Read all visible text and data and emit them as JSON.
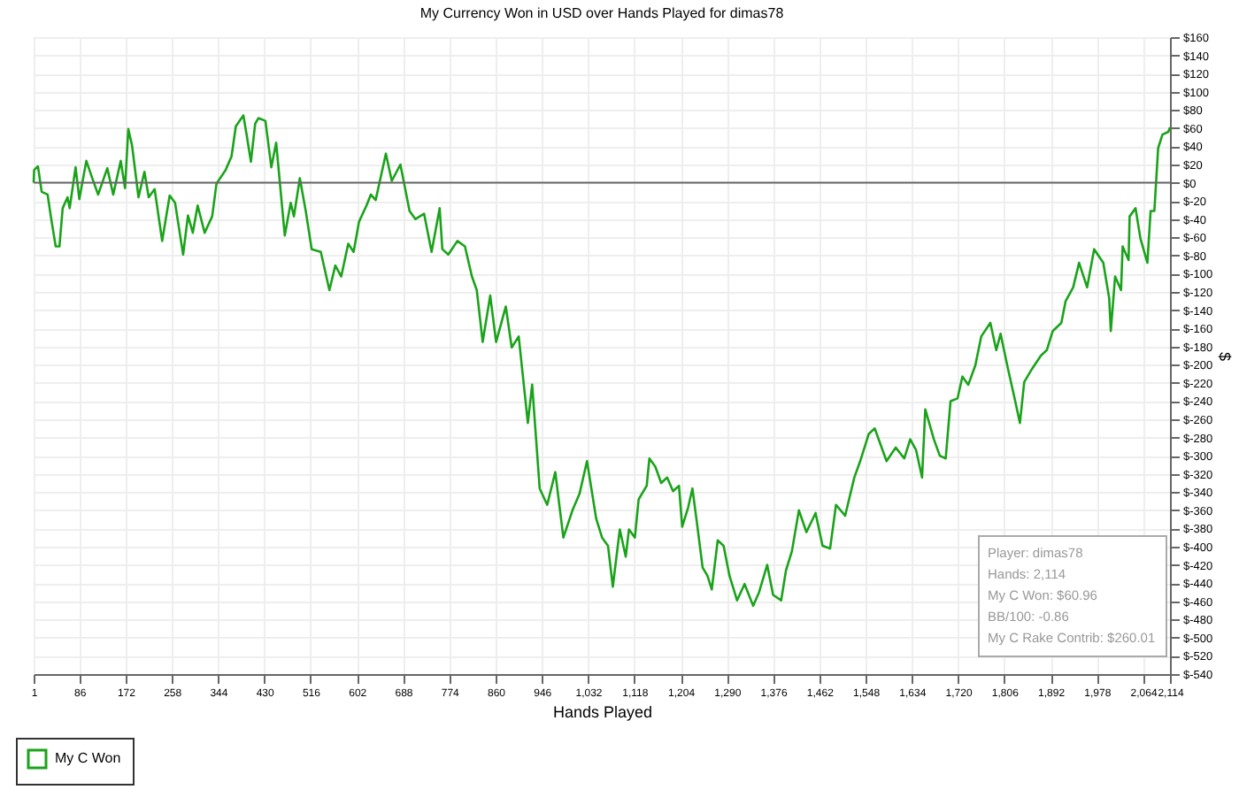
{
  "chart_data": {
    "type": "line",
    "title": "My Currency Won in USD over Hands Played for dimas78",
    "xlabel": "Hands Played",
    "ylabel": "$",
    "xlim": [
      1,
      2114
    ],
    "ylim": [
      -540,
      160
    ],
    "xticks": [
      1,
      86,
      172,
      258,
      344,
      430,
      516,
      602,
      688,
      774,
      860,
      946,
      {
        "value": 1032,
        "label": "1,032"
      },
      {
        "value": 1118,
        "label": "1,118"
      },
      {
        "value": 1204,
        "label": "1,204"
      },
      {
        "value": 1290,
        "label": "1,290"
      },
      {
        "value": 1376,
        "label": "1,376"
      },
      {
        "value": 1462,
        "label": "1,462"
      },
      {
        "value": 1548,
        "label": "1,548"
      },
      {
        "value": 1634,
        "label": "1,634"
      },
      {
        "value": 1720,
        "label": "1,720"
      },
      {
        "value": 1806,
        "label": "1,806"
      },
      {
        "value": 1892,
        "label": "1,892"
      },
      {
        "value": 1978,
        "label": "1,978"
      },
      {
        "value": 2064,
        "label": "2,064"
      },
      {
        "value": 2114,
        "label": "2,114"
      }
    ],
    "yticks": [
      {
        "value": 160,
        "label": "$160"
      },
      {
        "value": 140,
        "label": "$140"
      },
      {
        "value": 120,
        "label": "$120"
      },
      {
        "value": 100,
        "label": "$100"
      },
      {
        "value": 80,
        "label": "$80"
      },
      {
        "value": 60,
        "label": "$60"
      },
      {
        "value": 40,
        "label": "$40"
      },
      {
        "value": 20,
        "label": "$20"
      },
      {
        "value": 0,
        "label": "$0"
      },
      {
        "value": -20,
        "label": "$-20"
      },
      {
        "value": -40,
        "label": "$-40"
      },
      {
        "value": -60,
        "label": "$-60"
      },
      {
        "value": -80,
        "label": "$-80"
      },
      {
        "value": -100,
        "label": "$-100"
      },
      {
        "value": -120,
        "label": "$-120"
      },
      {
        "value": -140,
        "label": "$-140"
      },
      {
        "value": -160,
        "label": "$-160"
      },
      {
        "value": -180,
        "label": "$-180"
      },
      {
        "value": -200,
        "label": "$-200"
      },
      {
        "value": -220,
        "label": "$-220"
      },
      {
        "value": -240,
        "label": "$-240"
      },
      {
        "value": -260,
        "label": "$-260"
      },
      {
        "value": -280,
        "label": "$-280"
      },
      {
        "value": -300,
        "label": "$-300"
      },
      {
        "value": -320,
        "label": "$-320"
      },
      {
        "value": -340,
        "label": "$-340"
      },
      {
        "value": -360,
        "label": "$-360"
      },
      {
        "value": -380,
        "label": "$-380"
      },
      {
        "value": -400,
        "label": "$-400"
      },
      {
        "value": -420,
        "label": "$-420"
      },
      {
        "value": -440,
        "label": "$-440"
      },
      {
        "value": -460,
        "label": "$-460"
      },
      {
        "value": -480,
        "label": "$-480"
      },
      {
        "value": -500,
        "label": "$-500"
      },
      {
        "value": -520,
        "label": "$-520"
      },
      {
        "value": -540,
        "label": "$-540"
      }
    ],
    "grid": true,
    "legend": "bottom left",
    "marker": "none",
    "line_style": "solid",
    "ref_lines": [
      {
        "axis": "y",
        "value": 0,
        "color": "#666666"
      }
    ],
    "annotations": [
      "Player: dimas78",
      "Hands: 2,114",
      "My C Won: $60.96",
      "BB/100: -0.86",
      "My C Rake Contrib: $260.01"
    ],
    "series": [
      {
        "name": "My C Won",
        "color": "#1aa31a",
        "x": [
          1,
          2,
          9,
          16,
          27,
          33,
          42,
          49,
          55,
          64,
          68,
          79,
          86,
          99,
          110,
          121,
          138,
          149,
          163,
          171,
          177,
          184,
          196,
          207,
          215,
          226,
          240,
          254,
          264,
          279,
          288,
          297,
          306,
          319,
          333,
          341,
          358,
          369,
          377,
          391,
          397,
          405,
          413,
          419,
          432,
          443,
          452,
          468,
          479,
          485,
          496,
          507,
          518,
          535,
          551,
          562,
          573,
          586,
          596,
          606,
          620,
          628,
          637,
          656,
          667,
          683,
          692,
          700,
          711,
          727,
          741,
          756,
          761,
          772,
          789,
          803,
          816,
          825,
          836,
          850,
          861,
          879,
          890,
          903,
          920,
          928,
          942,
          956,
          971,
          986,
          1003,
          1016,
          1030,
          1047,
          1058,
          1069,
          1078,
          1091,
          1102,
          1108,
          1119,
          1126,
          1141,
          1146,
          1157,
          1168,
          1179,
          1190,
          1201,
          1207,
          1218,
          1226,
          1234,
          1245,
          1254,
          1262,
          1273,
          1284,
          1295,
          1309,
          1323,
          1339,
          1350,
          1365,
          1376,
          1391,
          1400,
          1411,
          1424,
          1438,
          1455,
          1468,
          1482,
          1493,
          1510,
          1527,
          1538,
          1554,
          1565,
          1587,
          1604,
          1620,
          1631,
          1642,
          1653,
          1659,
          1675,
          1686,
          1697,
          1706,
          1719,
          1728,
          1739,
          1752,
          1763,
          1780,
          1791,
          1799,
          1813,
          1824,
          1835,
          1843,
          1857,
          1874,
          1885,
          1896,
          1912,
          1920,
          1934,
          1945,
          1960,
          1973,
          1990,
          2001,
          2004,
          2012,
          2023,
          2026,
          2037,
          2039,
          2050,
          2059,
          2072,
          2078,
          2085,
          2092,
          2100,
          2111,
          2114
        ],
        "values": [
          0,
          14,
          18,
          -10,
          -13,
          -37,
          -70,
          -70,
          -28,
          -16,
          -28,
          17,
          -18,
          24,
          5,
          -13,
          16,
          -13,
          24,
          -6,
          59,
          41,
          -16,
          12,
          -16,
          -7,
          -64,
          -14,
          -22,
          -79,
          -36,
          -55,
          -25,
          -55,
          -37,
          -1,
          14,
          29,
          62,
          74,
          53,
          23,
          65,
          71,
          68,
          17,
          44,
          -58,
          -22,
          -37,
          5,
          -31,
          -73,
          -76,
          -118,
          -91,
          -103,
          -67,
          -76,
          -43,
          -25,
          -13,
          -19,
          32,
          2,
          20,
          -7,
          -31,
          -40,
          -34,
          -76,
          -28,
          -73,
          -79,
          -64,
          -70,
          -103,
          -118,
          -175,
          -124,
          -175,
          -136,
          -181,
          -169,
          -264,
          -222,
          -336,
          -354,
          -318,
          -390,
          -360,
          -342,
          -306,
          -369,
          -390,
          -399,
          -444,
          -381,
          -411,
          -381,
          -390,
          -348,
          -333,
          -303,
          -312,
          -330,
          -324,
          -339,
          -333,
          -378,
          -357,
          -336,
          -372,
          -423,
          -432,
          -447,
          -393,
          -399,
          -432,
          -459,
          -441,
          -465,
          -450,
          -420,
          -453,
          -459,
          -426,
          -405,
          -360,
          -384,
          -363,
          -399,
          -402,
          -354,
          -366,
          -324,
          -306,
          -276,
          -270,
          -306,
          -291,
          -303,
          -282,
          -294,
          -324,
          -249,
          -282,
          -300,
          -303,
          -240,
          -237,
          -213,
          -222,
          -201,
          -169,
          -154,
          -184,
          -166,
          -205,
          -234,
          -264,
          -219,
          -205,
          -190,
          -184,
          -163,
          -154,
          -130,
          -115,
          -88,
          -115,
          -73,
          -88,
          -127,
          -163,
          -103,
          -118,
          -70,
          -85,
          -37,
          -28,
          -61,
          -88,
          -31,
          -31,
          38,
          53,
          56,
          61
        ]
      }
    ]
  }
}
